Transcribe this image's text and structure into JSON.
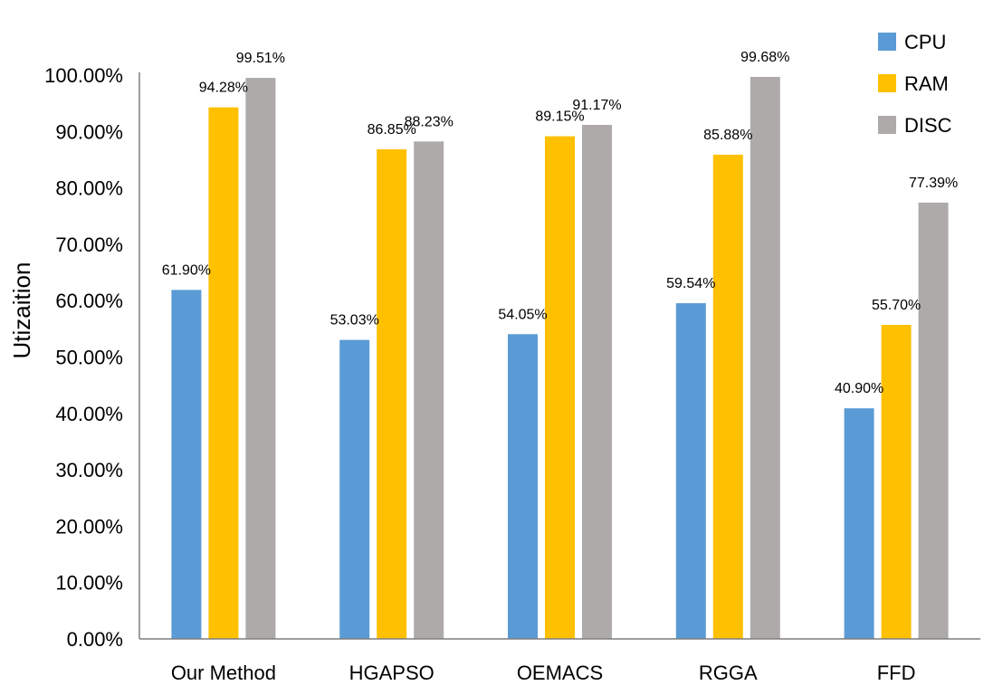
{
  "chart_data": {
    "type": "bar",
    "title": "",
    "xlabel": "",
    "ylabel": "Utizaition",
    "ylim": [
      0,
      100
    ],
    "ytick_step": 10,
    "grid": false,
    "legend_position": "top-right",
    "categories": [
      "Our Method",
      "HGAPSO",
      "OEMACS",
      "RGGA",
      "FFD"
    ],
    "series": [
      {
        "name": "CPU",
        "color": "#5B9BD5",
        "values": [
          61.9,
          53.03,
          54.05,
          59.54,
          40.9
        ]
      },
      {
        "name": "RAM",
        "color": "#FFC000",
        "values": [
          94.28,
          86.85,
          89.15,
          85.88,
          55.7
        ]
      },
      {
        "name": "DISC",
        "color": "#AEAAAA",
        "values": [
          99.51,
          88.23,
          91.17,
          99.68,
          77.39
        ]
      }
    ]
  }
}
